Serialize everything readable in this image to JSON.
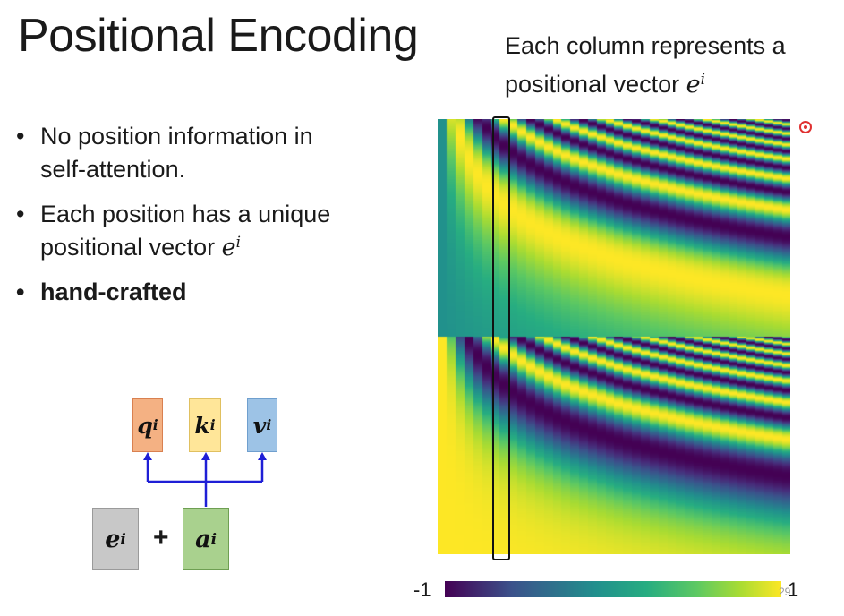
{
  "slide": {
    "title": "Positional Encoding",
    "caption_line1": "Each column represents a",
    "caption_line2": "positional vector ",
    "caption_symbol": "e",
    "caption_sup": "i",
    "page_number": "29"
  },
  "bullets": [
    {
      "line1": "No position information in",
      "line2": "self-attention."
    },
    {
      "line1": "Each position has a unique",
      "line2": "positional vector ",
      "symbol": "e",
      "sup": "i"
    },
    {
      "line1": "hand-crafted"
    }
  ],
  "diagram": {
    "q": {
      "base": "q",
      "sup": "i",
      "color": "#f4b183"
    },
    "k": {
      "base": "k",
      "sup": "i",
      "color": "#ffe699"
    },
    "v": {
      "base": "v",
      "sup": "i",
      "color": "#9dc3e6"
    },
    "e": {
      "base": "e",
      "sup": "i",
      "color": "#c8c8c8"
    },
    "a": {
      "base": "a",
      "sup": "i",
      "color": "#a9d18e"
    },
    "plus": "+",
    "arrow_color": "#1f1fd6"
  },
  "heatmap": {
    "colormap": "viridis",
    "highlight_color": "#111111"
  },
  "colorbar": {
    "min_label": "-1",
    "max_label": "1"
  },
  "icons": {
    "cursor": "laser-pointer-icon"
  }
}
